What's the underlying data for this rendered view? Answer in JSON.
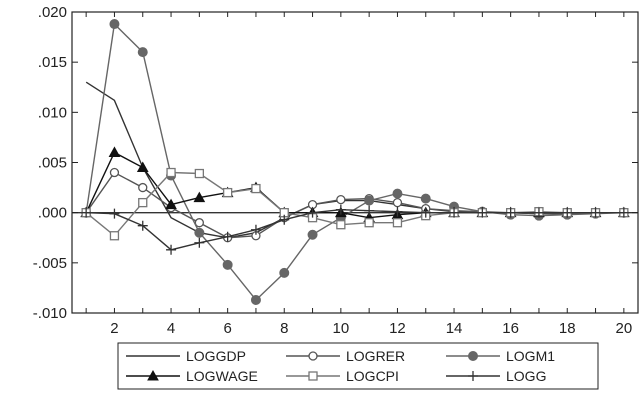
{
  "chart_data": {
    "type": "line",
    "title": "",
    "xlabel": "",
    "ylabel": "",
    "x": [
      1,
      2,
      3,
      4,
      5,
      6,
      7,
      8,
      9,
      10,
      11,
      12,
      13,
      14,
      15,
      16,
      17,
      18,
      19,
      20
    ],
    "xlim": [
      0.5,
      20.5
    ],
    "ylim": [
      -0.01,
      0.02
    ],
    "y_ticks": [
      ".020",
      ".015",
      ".010",
      ".005",
      ".000",
      "-.005",
      "-.010"
    ],
    "y_tick_values": [
      0.02,
      0.015,
      0.01,
      0.005,
      0.0,
      -0.005,
      -0.01
    ],
    "x_ticks": [
      "2",
      "4",
      "6",
      "8",
      "10",
      "12",
      "14",
      "16",
      "18",
      "20"
    ],
    "x_tick_values": [
      2,
      4,
      6,
      8,
      10,
      12,
      14,
      16,
      18,
      20
    ],
    "grid": false,
    "legend_position": "bottom",
    "series": [
      {
        "name": "LOGGDP",
        "marker": "none",
        "color": "#333333",
        "values": [
          0.013,
          0.0112,
          0.0045,
          -0.0005,
          -0.002,
          -0.0025,
          -0.002,
          -0.0005,
          0.0008,
          0.0012,
          0.0012,
          0.0008,
          0.0004,
          0.0001,
          0.0,
          0.0,
          -0.0001,
          -0.0001,
          0.0,
          0.0
        ]
      },
      {
        "name": "LOGRER",
        "marker": "circle-open",
        "color": "#555555",
        "values": [
          0.0,
          0.004,
          0.0025,
          0.0005,
          -0.001,
          -0.0025,
          -0.0023,
          -0.0005,
          0.0008,
          0.0013,
          0.0014,
          0.001,
          0.0004,
          0.0002,
          0.0001,
          0.0,
          -0.0001,
          -0.0001,
          0.0,
          0.0
        ]
      },
      {
        "name": "LOGM1",
        "marker": "circle-filled",
        "color": "#666666",
        "values": [
          0.0,
          0.0188,
          0.016,
          0.0037,
          -0.002,
          -0.0052,
          -0.0087,
          -0.006,
          -0.0022,
          -0.0005,
          0.0012,
          0.0019,
          0.0014,
          0.0006,
          0.0001,
          -0.0002,
          -0.0003,
          -0.0002,
          -0.0001,
          0.0
        ]
      },
      {
        "name": "LOGWAGE",
        "marker": "triangle-filled",
        "color": "#111111",
        "values": [
          0.0,
          0.006,
          0.0045,
          0.0008,
          0.0015,
          0.002,
          0.0025,
          0.0,
          0.0,
          0.0,
          -0.0005,
          -0.0002,
          0.0,
          0.0,
          0.0,
          0.0,
          0.0,
          0.0,
          0.0,
          0.0
        ]
      },
      {
        "name": "LOGCPI",
        "marker": "square-open",
        "color": "#777777",
        "values": [
          0.0,
          -0.0023,
          0.001,
          0.004,
          0.0039,
          0.002,
          0.0024,
          0.0,
          -0.0005,
          -0.0012,
          -0.001,
          -0.001,
          -0.0003,
          0.0,
          0.0,
          0.0,
          0.0001,
          0.0,
          0.0,
          0.0
        ]
      },
      {
        "name": "LOGG",
        "marker": "plus",
        "color": "#333333",
        "values": [
          0.0,
          -0.0001,
          -0.0013,
          -0.0037,
          -0.003,
          -0.0024,
          -0.0017,
          -0.0007,
          0.0,
          0.0003,
          0.0002,
          0.0001,
          0.0,
          0.0,
          0.0,
          0.0,
          0.0,
          0.0,
          0.0,
          0.0
        ]
      }
    ]
  }
}
